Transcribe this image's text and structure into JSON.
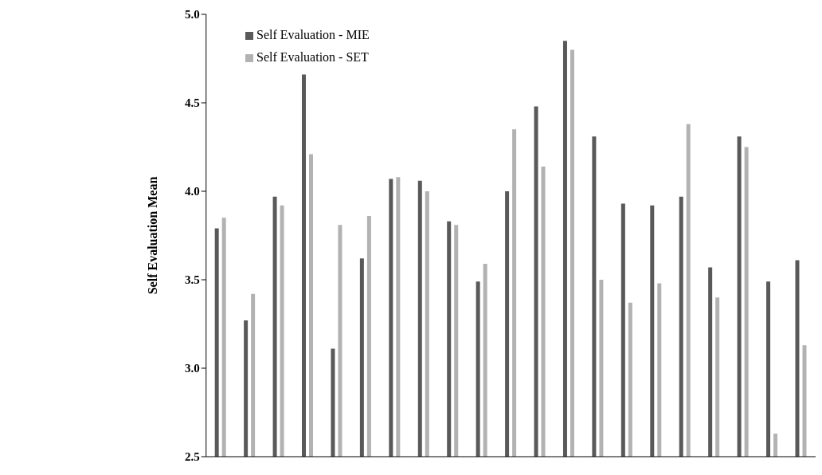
{
  "chart_data": {
    "type": "bar",
    "ylabel": "Self Evaluation Mean",
    "categories": [
      null,
      null,
      null,
      null,
      null,
      null,
      null,
      null,
      null,
      null,
      null,
      null,
      null,
      null,
      null,
      null,
      null,
      null,
      null,
      null,
      null
    ],
    "series": [
      {
        "name": "Self Evaluation - MIE",
        "color": "#595959",
        "values": [
          3.79,
          3.27,
          3.97,
          4.66,
          3.11,
          3.62,
          4.07,
          4.06,
          3.83,
          3.49,
          4.0,
          4.48,
          4.85,
          4.31,
          3.93,
          3.92,
          3.97,
          3.57,
          4.31,
          3.49,
          3.61
        ]
      },
      {
        "name": "Self Evaluation - SET",
        "color": "#b2b2b2",
        "values": [
          3.85,
          3.42,
          3.92,
          4.21,
          3.81,
          3.86,
          4.08,
          4.0,
          3.81,
          3.59,
          4.35,
          4.14,
          4.8,
          3.5,
          3.37,
          3.48,
          4.38,
          3.4,
          4.25,
          2.63,
          3.13
        ]
      }
    ],
    "ylim": [
      2.5,
      5.0
    ],
    "yticks": [
      {
        "value": 2.5,
        "label": "2.5"
      },
      {
        "value": 3.0,
        "label": "3.0"
      },
      {
        "value": 3.5,
        "label": "3.5"
      },
      {
        "value": 4.0,
        "label": "4.0"
      },
      {
        "value": 4.5,
        "label": "4.5"
      },
      {
        "value": 5.0,
        "label": "5.0"
      }
    ],
    "grid": false,
    "legend": "top left"
  }
}
